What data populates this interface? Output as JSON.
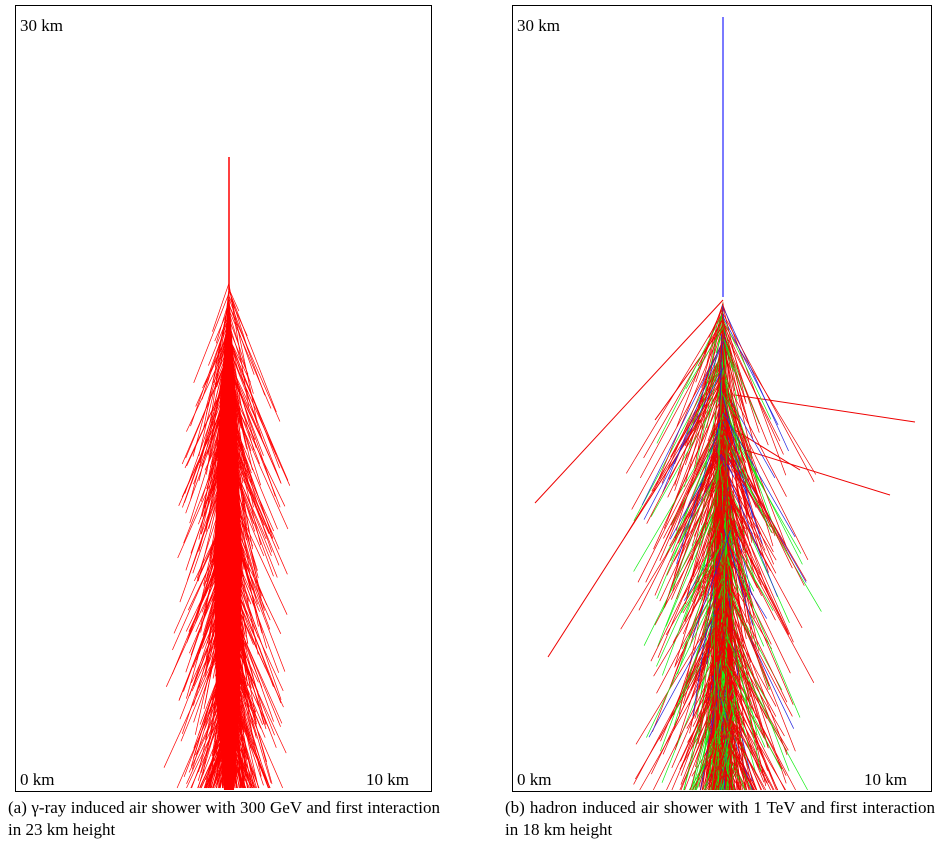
{
  "panels": [
    {
      "top_label": "30 km",
      "bottom_left_label": "0 km",
      "bottom_right_label": "10 km",
      "caption": "(a) γ-ray induced air shower with 300 GeV and first interaction in 23 km height"
    },
    {
      "top_label": "30 km",
      "bottom_left_label": "0 km",
      "bottom_right_label": "10 km",
      "caption": "(b) hadron induced air shower with 1 TeV and first interaction in 18 km height"
    }
  ]
}
